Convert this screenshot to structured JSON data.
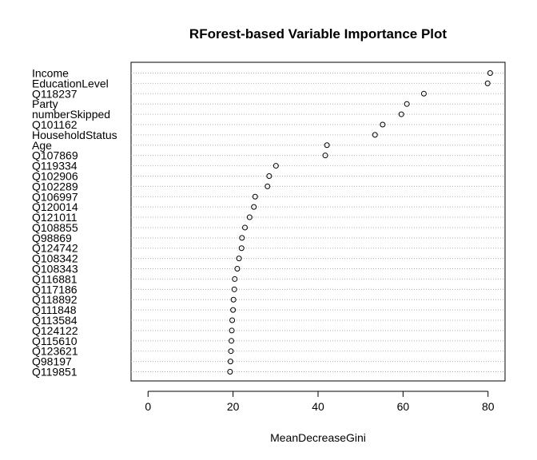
{
  "chart_data": {
    "type": "scatter",
    "title": "RForest-based Variable Importance Plot",
    "xlabel": "MeanDecreaseGini",
    "ylabel": "",
    "xlim": [
      -4,
      84
    ],
    "xticks": [
      0,
      20,
      40,
      60,
      80
    ],
    "grid": "horizontal dotted",
    "marker": "open-circle",
    "categories": [
      "Income",
      "EducationLevel",
      "Q118237",
      "Party",
      "numberSkipped",
      "Q101162",
      "HouseholdStatus",
      "Age",
      "Q107869",
      "Q119334",
      "Q102906",
      "Q102289",
      "Q106997",
      "Q120014",
      "Q121011",
      "Q108855",
      "Q98869",
      "Q124742",
      "Q108342",
      "Q108343",
      "Q116881",
      "Q117186",
      "Q118892",
      "Q111848",
      "Q113584",
      "Q124122",
      "Q115610",
      "Q123621",
      "Q98197",
      "Q119851"
    ],
    "values": [
      80.5,
      79.9,
      64.9,
      60.9,
      59.6,
      55.2,
      53.4,
      42.1,
      41.7,
      30.1,
      28.5,
      28.1,
      25.2,
      24.9,
      23.9,
      22.8,
      22.1,
      22.0,
      21.4,
      21.0,
      20.4,
      20.3,
      20.1,
      20.0,
      19.8,
      19.7,
      19.6,
      19.5,
      19.4,
      19.3
    ]
  }
}
